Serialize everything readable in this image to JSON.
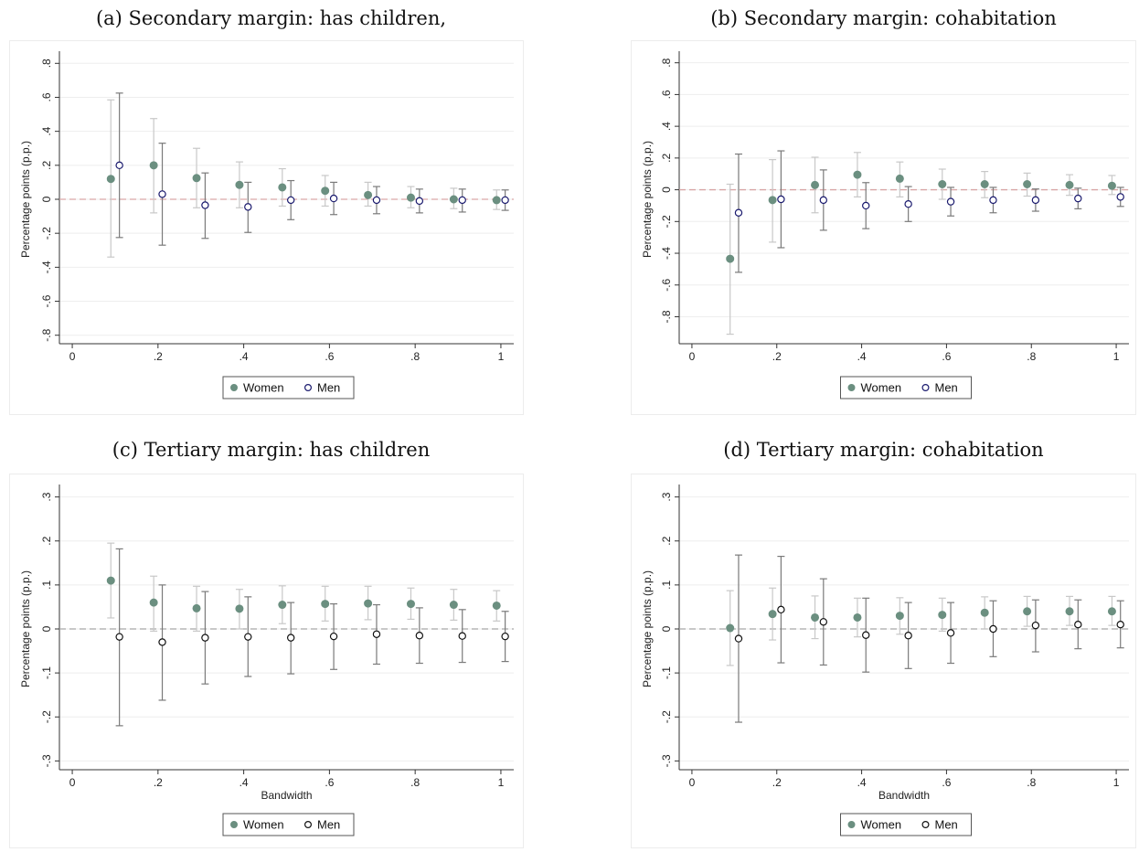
{
  "chart_data": [
    {
      "type": "scatter",
      "title": "(a) Secondary margin: has children,",
      "xlabel": "",
      "ylabel": "Percentage points (p.p.)",
      "xlim": [
        0,
        1
      ],
      "ylim": [
        -0.8,
        0.8
      ],
      "xticks": [
        "0",
        ".2",
        ".4",
        ".6",
        ".8",
        "1"
      ],
      "yticks": [
        ".8",
        ".6",
        ".4",
        ".2",
        "0",
        "-.2",
        "-.4",
        "-.6",
        "-.8"
      ],
      "legend": "bottom",
      "colors": {
        "women": "#6b8f80",
        "men": "#1a1a6e",
        "women_ci": "#c8c8c8",
        "men_ci": "#7a7a7a",
        "zero_line": "#d9a6a6"
      },
      "series": [
        {
          "name": "Women",
          "x": [
            0.09,
            0.19,
            0.29,
            0.39,
            0.49,
            0.59,
            0.69,
            0.79,
            0.89,
            0.99
          ],
          "y": [
            0.12,
            0.2,
            0.125,
            0.085,
            0.07,
            0.05,
            0.025,
            0.01,
            0.0,
            -0.005
          ],
          "lo": [
            -0.34,
            -0.08,
            -0.05,
            -0.05,
            -0.04,
            -0.04,
            -0.04,
            -0.05,
            -0.055,
            -0.06
          ],
          "hi": [
            0.585,
            0.475,
            0.3,
            0.22,
            0.18,
            0.14,
            0.1,
            0.075,
            0.065,
            0.055
          ]
        },
        {
          "name": "Men",
          "x": [
            0.11,
            0.21,
            0.31,
            0.41,
            0.51,
            0.61,
            0.71,
            0.81,
            0.91,
            1.01
          ],
          "y": [
            0.2,
            0.03,
            -0.035,
            -0.045,
            -0.005,
            0.005,
            -0.005,
            -0.01,
            -0.005,
            -0.005
          ],
          "lo": [
            -0.225,
            -0.27,
            -0.23,
            -0.195,
            -0.12,
            -0.09,
            -0.085,
            -0.08,
            -0.075,
            -0.065
          ],
          "hi": [
            0.625,
            0.33,
            0.155,
            0.1,
            0.11,
            0.1,
            0.075,
            0.06,
            0.06,
            0.055
          ]
        }
      ]
    },
    {
      "type": "scatter",
      "title": "(b) Secondary margin: cohabitation",
      "xlabel": "",
      "ylabel": "Percentage points (p.p.)",
      "xlim": [
        0,
        1
      ],
      "ylim": [
        -0.9,
        0.8
      ],
      "xticks": [
        "0",
        ".2",
        ".4",
        ".6",
        ".8",
        "1"
      ],
      "yticks": [
        ".8",
        ".6",
        ".4",
        ".2",
        "0",
        "-.2",
        "-.4",
        "-.6",
        "-.8"
      ],
      "legend": "bottom",
      "colors": {
        "women": "#6b8f80",
        "men": "#1a1a6e",
        "women_ci": "#c8c8c8",
        "men_ci": "#7a7a7a",
        "zero_line": "#d9a6a6"
      },
      "series": [
        {
          "name": "Women",
          "x": [
            0.09,
            0.19,
            0.29,
            0.39,
            0.49,
            0.59,
            0.69,
            0.79,
            0.89,
            0.99
          ],
          "y": [
            -0.435,
            -0.065,
            0.03,
            0.095,
            0.07,
            0.035,
            0.035,
            0.035,
            0.03,
            0.025
          ],
          "lo": [
            -0.91,
            -0.33,
            -0.145,
            -0.045,
            -0.045,
            -0.06,
            -0.05,
            -0.04,
            -0.035,
            -0.03
          ],
          "hi": [
            0.035,
            0.19,
            0.205,
            0.235,
            0.175,
            0.13,
            0.115,
            0.105,
            0.095,
            0.09
          ]
        },
        {
          "name": "Men",
          "x": [
            0.11,
            0.21,
            0.31,
            0.41,
            0.51,
            0.61,
            0.71,
            0.81,
            0.91,
            1.01
          ],
          "y": [
            -0.145,
            -0.06,
            -0.065,
            -0.1,
            -0.09,
            -0.075,
            -0.065,
            -0.065,
            -0.055,
            -0.045
          ],
          "lo": [
            -0.52,
            -0.365,
            -0.255,
            -0.245,
            -0.2,
            -0.165,
            -0.145,
            -0.135,
            -0.12,
            -0.105
          ],
          "hi": [
            0.225,
            0.245,
            0.125,
            0.045,
            0.02,
            0.015,
            0.015,
            0.005,
            0.01,
            0.015
          ]
        }
      ]
    },
    {
      "type": "scatter",
      "title": "(c) Tertiary margin: has children",
      "xlabel": "Bandwidth",
      "ylabel": "Percentage points (p.p.)",
      "xlim": [
        0,
        1
      ],
      "ylim": [
        -0.3,
        0.3
      ],
      "xticks": [
        "0",
        ".2",
        ".4",
        ".6",
        ".8",
        "1"
      ],
      "yticks": [
        ".3",
        ".2",
        ".1",
        "0",
        "-.1",
        "-.2",
        "-.3"
      ],
      "legend": "bottom",
      "colors": {
        "women": "#6b8f80",
        "men": "#111111",
        "women_ci": "#c8c8c8",
        "men_ci": "#7a7a7a",
        "zero_line": "#a8a8a8"
      },
      "series": [
        {
          "name": "Women",
          "x": [
            0.09,
            0.19,
            0.29,
            0.39,
            0.49,
            0.59,
            0.69,
            0.79,
            0.89,
            0.99
          ],
          "y": [
            0.11,
            0.06,
            0.047,
            0.046,
            0.055,
            0.057,
            0.058,
            0.057,
            0.055,
            0.053
          ],
          "lo": [
            0.025,
            -0.005,
            -0.005,
            0.0,
            0.012,
            0.018,
            0.021,
            0.022,
            0.02,
            0.018
          ],
          "hi": [
            0.195,
            0.12,
            0.097,
            0.09,
            0.098,
            0.097,
            0.097,
            0.093,
            0.09,
            0.087
          ]
        },
        {
          "name": "Men",
          "x": [
            0.11,
            0.21,
            0.31,
            0.41,
            0.51,
            0.61,
            0.71,
            0.81,
            0.91,
            1.01
          ],
          "y": [
            -0.018,
            -0.03,
            -0.02,
            -0.018,
            -0.02,
            -0.017,
            -0.012,
            -0.015,
            -0.016,
            -0.017
          ],
          "lo": [
            -0.22,
            -0.162,
            -0.125,
            -0.108,
            -0.102,
            -0.092,
            -0.08,
            -0.078,
            -0.076,
            -0.074
          ],
          "hi": [
            0.182,
            0.1,
            0.085,
            0.073,
            0.06,
            0.057,
            0.055,
            0.048,
            0.044,
            0.04
          ]
        }
      ]
    },
    {
      "type": "scatter",
      "title": "(d) Tertiary margin: cohabitation",
      "xlabel": "Bandwidth",
      "ylabel": "Percentage points (p.p.)",
      "xlim": [
        0,
        1
      ],
      "ylim": [
        -0.3,
        0.3
      ],
      "xticks": [
        "0",
        ".2",
        ".4",
        ".6",
        ".8",
        "1"
      ],
      "yticks": [
        ".3",
        ".2",
        ".1",
        "0",
        "-.1",
        "-.2",
        "-.3"
      ],
      "legend": "bottom",
      "colors": {
        "women": "#6b8f80",
        "men": "#111111",
        "women_ci": "#c8c8c8",
        "men_ci": "#7a7a7a",
        "zero_line": "#a8a8a8"
      },
      "series": [
        {
          "name": "Women",
          "x": [
            0.09,
            0.19,
            0.29,
            0.39,
            0.49,
            0.59,
            0.69,
            0.79,
            0.89,
            0.99
          ],
          "y": [
            0.002,
            0.034,
            0.026,
            0.026,
            0.03,
            0.032,
            0.037,
            0.04,
            0.04,
            0.04
          ],
          "lo": [
            -0.083,
            -0.025,
            -0.022,
            -0.018,
            -0.012,
            -0.005,
            0.0,
            0.006,
            0.008,
            0.008
          ],
          "hi": [
            0.087,
            0.093,
            0.075,
            0.07,
            0.071,
            0.07,
            0.073,
            0.074,
            0.074,
            0.074
          ]
        },
        {
          "name": "Men",
          "x": [
            0.11,
            0.21,
            0.31,
            0.41,
            0.51,
            0.61,
            0.71,
            0.81,
            0.91,
            1.01
          ],
          "y": [
            -0.022,
            0.044,
            0.016,
            -0.014,
            -0.015,
            -0.009,
            0.0,
            0.008,
            0.01,
            0.01
          ],
          "lo": [
            -0.212,
            -0.077,
            -0.082,
            -0.098,
            -0.09,
            -0.078,
            -0.063,
            -0.052,
            -0.045,
            -0.043
          ],
          "hi": [
            0.168,
            0.165,
            0.114,
            0.07,
            0.06,
            0.06,
            0.064,
            0.066,
            0.066,
            0.064
          ]
        }
      ]
    }
  ]
}
